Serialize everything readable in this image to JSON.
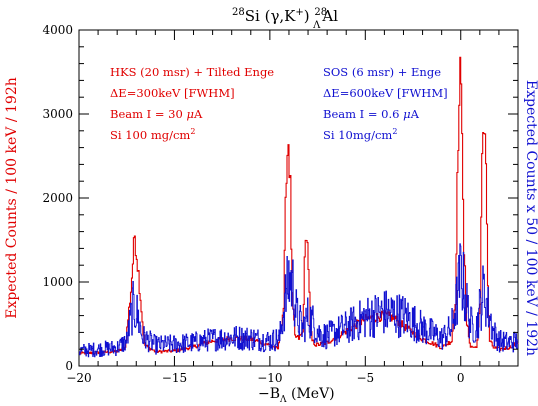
{
  "chart_data": {
    "type": "line",
    "title": {
      "sup1": "28",
      "main1": "Si  (",
      "gamma": "γ",
      "main2": ",K",
      "supplus": "+",
      "main3": ")  ",
      "sup2": "28",
      "sub_lambda": "Λ",
      "main4": "Al"
    },
    "xlabel": {
      "prefix": "−B",
      "sub": "Λ",
      "suffix": " (MeV)"
    },
    "ylabel_left": "Expected Counts / 100 keV / 192h",
    "ylabel_right": "Expected Counts x 50 / 100 keV / 192h",
    "xlim": [
      -20,
      3
    ],
    "ylim": [
      0,
      4000
    ],
    "x_ticks": [
      "−20",
      "−15",
      "−10",
      "−5",
      "0"
    ],
    "x_tick_values": [
      -20,
      -15,
      -10,
      -5,
      0
    ],
    "y_ticks": [
      "0",
      "1000",
      "2000",
      "3000",
      "4000"
    ],
    "y_tick_values": [
      0,
      1000,
      2000,
      3000,
      4000
    ],
    "grid": false,
    "colors": {
      "left": "#e00000",
      "right": "#1010d0",
      "axis": "#000000"
    },
    "annotations_left": {
      "line1": "HKS (20 msr) + Tilted Enge",
      "line2_prefix": "ΔE=300keV [FWHM]",
      "line3_prefix": "Beam I = 30 ",
      "line3_unit_mu": "μ",
      "line3_unit": "A",
      "line4_prefix": "Si 100 mg/cm",
      "line4_sup": "2"
    },
    "annotations_right": {
      "line1": "SOS (6 msr) + Enge",
      "line2_prefix": "ΔE=600keV [FWHM]",
      "line3_prefix": "Beam I = 0.6 ",
      "line3_unit_mu": "μ",
      "line3_unit": "A",
      "line4_prefix": "Si 10mg/cm",
      "line4_sup": "2"
    },
    "series": [
      {
        "name": "HKS (20 msr) + Tilted Enge",
        "color": "#e00000",
        "x": [
          -20,
          -19,
          -18,
          -17.6,
          -17.3,
          -17.1,
          -16.9,
          -16.6,
          -16,
          -15,
          -14,
          -13,
          -12,
          -11,
          -10,
          -9.6,
          -9.3,
          -9.15,
          -9.05,
          -8.95,
          -8.85,
          -8.7,
          -8.5,
          -8.3,
          -8.2,
          -8.1,
          -8.0,
          -7.9,
          -7.8,
          -7.6,
          -7,
          -6,
          -5,
          -4,
          -3.5,
          -3,
          -2,
          -1,
          -0.5,
          -0.3,
          -0.15,
          -0.05,
          0.05,
          0.15,
          0.3,
          0.5,
          0.8,
          1.0,
          1.1,
          1.2,
          1.3,
          1.4,
          1.5,
          1.7,
          2,
          2.5,
          3
        ],
        "y": [
          150,
          160,
          175,
          220,
          900,
          1570,
          1100,
          250,
          170,
          180,
          230,
          300,
          330,
          320,
          250,
          200,
          700,
          2400,
          2700,
          2100,
          800,
          350,
          330,
          400,
          1200,
          1650,
          1200,
          450,
          300,
          250,
          280,
          420,
          560,
          600,
          570,
          470,
          320,
          220,
          300,
          800,
          2800,
          3380,
          2950,
          1400,
          500,
          230,
          220,
          700,
          2600,
          2980,
          2500,
          900,
          300,
          220,
          200,
          220,
          280
        ]
      },
      {
        "name": "SOS (6 msr) + Enge",
        "color": "#1010d0",
        "x": [
          -20,
          -19,
          -18,
          -17.5,
          -17.2,
          -17.0,
          -16.7,
          -16,
          -15,
          -14,
          -13,
          -12,
          -11,
          -10,
          -9.5,
          -9.2,
          -9.0,
          -8.8,
          -8.6,
          -8.3,
          -8.0,
          -7.7,
          -7.4,
          -7,
          -6,
          -5,
          -4,
          -3,
          -2,
          -1,
          -0.5,
          -0.2,
          0.0,
          0.2,
          0.5,
          0.8,
          1.0,
          1.2,
          1.4,
          1.7,
          2,
          2.5,
          3
        ],
        "y": [
          180,
          200,
          220,
          300,
          700,
          650,
          350,
          250,
          260,
          280,
          320,
          340,
          330,
          300,
          330,
          800,
          1050,
          950,
          600,
          450,
          600,
          500,
          380,
          360,
          460,
          580,
          640,
          600,
          450,
          330,
          450,
          800,
          1150,
          850,
          500,
          450,
          700,
          900,
          700,
          400,
          300,
          280,
          300
        ]
      }
    ]
  }
}
